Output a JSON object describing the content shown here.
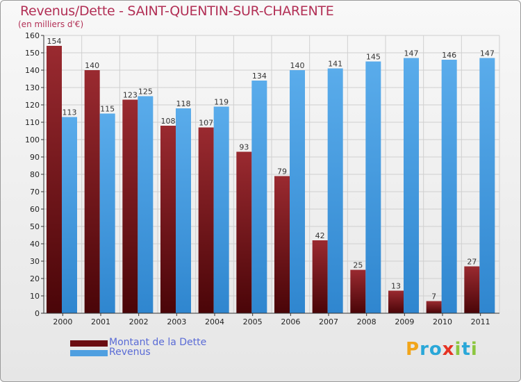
{
  "header": {
    "title": "Revenus/Dette - SAINT-QUENTIN-SUR-CHARENTE",
    "subtitle": "(en milliers d'€)"
  },
  "colors": {
    "debt": "#8b1a1f",
    "revenue": "#4f9fe0",
    "title": "#b22f55"
  },
  "legend": {
    "items": [
      {
        "label": "Montant de la Dette",
        "color": "#6b0d12"
      },
      {
        "label": "Revenus",
        "color": "#4f9fe0"
      }
    ]
  },
  "logo": {
    "letters": [
      "P",
      "r",
      "o",
      "x",
      "i",
      "t",
      "i"
    ],
    "colors": [
      "#f2a51a",
      "#2aa7d8",
      "#2aa7d8",
      "#e63323",
      "#8cc63f",
      "#2aa7d8",
      "#8cc63f"
    ]
  },
  "chart_data": {
    "type": "bar",
    "title": "Revenus/Dette - SAINT-QUENTIN-SUR-CHARENTE",
    "ylabel": "(en milliers d'€)",
    "categories": [
      "2000",
      "2001",
      "2002",
      "2003",
      "2004",
      "2005",
      "2006",
      "2007",
      "2008",
      "2009",
      "2010",
      "2011"
    ],
    "series": [
      {
        "name": "Montant de la Dette",
        "values": [
          154,
          140,
          123,
          108,
          107,
          93,
          79,
          42,
          25,
          13,
          7,
          27
        ]
      },
      {
        "name": "Revenus",
        "values": [
          113,
          115,
          125,
          118,
          119,
          134,
          140,
          141,
          145,
          147,
          146,
          147
        ]
      }
    ],
    "ylim": [
      0,
      160
    ],
    "ytick_step": 10,
    "grid": true,
    "legend_position": "bottom-left"
  }
}
